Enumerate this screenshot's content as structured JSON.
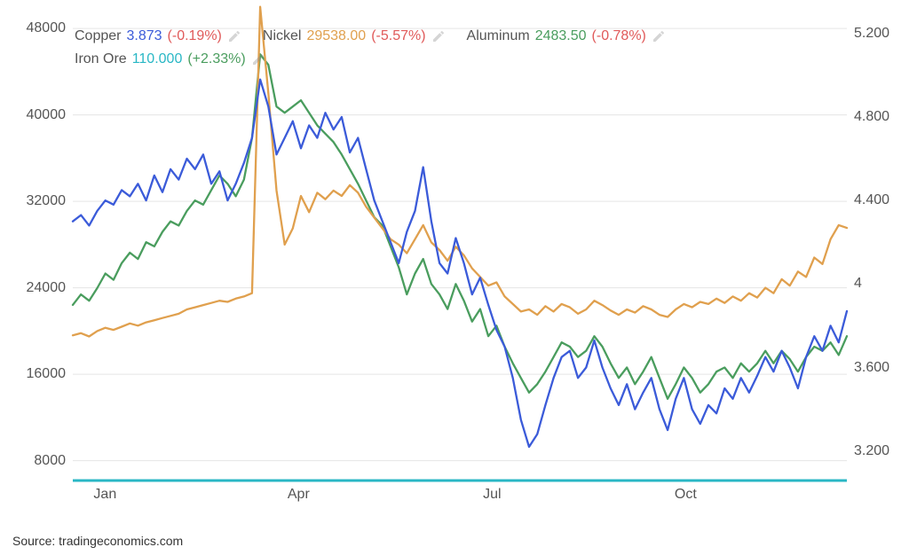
{
  "chart": {
    "type": "line",
    "background_color": "#ffffff",
    "grid_color": "#e5e5e5",
    "axis_text_color": "#555555",
    "axis_fontsize": 16,
    "line_width": 2.3,
    "baseline": {
      "color": "#29b7c5",
      "width": 3
    },
    "x_axis": {
      "ticks": [
        0,
        3,
        6,
        9
      ],
      "labels": [
        "Jan",
        "Apr",
        "Jul",
        "Oct"
      ],
      "xlim": [
        -0.5,
        11.5
      ]
    },
    "y_left": {
      "ticks": [
        8000,
        16000,
        24000,
        32000,
        40000,
        48000
      ],
      "labels": [
        "8000",
        "16000",
        "24000",
        "32000",
        "40000",
        "48000"
      ],
      "ylim": [
        6000,
        48500
      ]
    },
    "y_right": {
      "ticks": [
        3.2,
        3.6,
        4.0,
        4.4,
        4.8,
        5.2
      ],
      "labels": [
        "3.200",
        "3.600",
        "4",
        "4.400",
        "4.800",
        "5.200"
      ],
      "ylim": [
        3.05,
        5.25
      ]
    },
    "series": {
      "copper": {
        "name": "Copper",
        "color": "#3b5bd9",
        "axis": "right",
        "last_value": "3.873",
        "last_change": "(-0.19%)",
        "change_color": "#e05a5a",
        "data": [
          4.3,
          4.33,
          4.28,
          4.35,
          4.4,
          4.38,
          4.45,
          4.42,
          4.48,
          4.4,
          4.52,
          4.44,
          4.55,
          4.5,
          4.6,
          4.55,
          4.62,
          4.48,
          4.54,
          4.4,
          4.48,
          4.58,
          4.7,
          4.98,
          4.85,
          4.62,
          4.7,
          4.78,
          4.65,
          4.76,
          4.7,
          4.82,
          4.74,
          4.8,
          4.63,
          4.7,
          4.55,
          4.4,
          4.3,
          4.2,
          4.1,
          4.25,
          4.35,
          4.56,
          4.3,
          4.1,
          4.05,
          4.22,
          4.1,
          3.95,
          4.03,
          3.9,
          3.78,
          3.7,
          3.55,
          3.35,
          3.22,
          3.28,
          3.42,
          3.55,
          3.65,
          3.68,
          3.55,
          3.6,
          3.73,
          3.6,
          3.5,
          3.42,
          3.52,
          3.4,
          3.48,
          3.55,
          3.4,
          3.3,
          3.45,
          3.55,
          3.4,
          3.33,
          3.42,
          3.38,
          3.5,
          3.45,
          3.55,
          3.48,
          3.56,
          3.65,
          3.58,
          3.68,
          3.6,
          3.5,
          3.65,
          3.75,
          3.68,
          3.8,
          3.72,
          3.87
        ]
      },
      "nickel": {
        "name": "Nickel",
        "color": "#e0a04e",
        "axis": "left",
        "last_value": "29538.00",
        "last_change": "(-5.57%)",
        "change_color": "#e05a5a",
        "data": [
          19600,
          19800,
          19500,
          20000,
          20300,
          20100,
          20400,
          20700,
          20500,
          20800,
          21000,
          21200,
          21400,
          21600,
          22000,
          22200,
          22400,
          22600,
          22800,
          22700,
          23000,
          23200,
          23500,
          50000,
          42000,
          33000,
          28000,
          29500,
          32500,
          31000,
          32800,
          32200,
          33000,
          32500,
          33500,
          32800,
          31500,
          30500,
          29500,
          28500,
          28000,
          27200,
          28500,
          29800,
          28200,
          27500,
          26500,
          27800,
          27000,
          25800,
          25000,
          24200,
          24500,
          23200,
          22500,
          21800,
          22000,
          21500,
          22300,
          21800,
          22500,
          22200,
          21600,
          22000,
          22800,
          22400,
          21900,
          21500,
          22000,
          21700,
          22300,
          22000,
          21500,
          21300,
          22000,
          22500,
          22200,
          22700,
          22500,
          23000,
          22600,
          23200,
          22800,
          23500,
          23100,
          24000,
          23500,
          24800,
          24200,
          25500,
          25000,
          26800,
          26200,
          28500,
          29800,
          29538
        ]
      },
      "aluminum": {
        "name": "Aluminum",
        "color": "#4a9d5e",
        "axis": "right",
        "last_value": "2483.50",
        "last_change": "(-0.78%)",
        "change_color": "#e05a5a",
        "data": [
          3.9,
          3.95,
          3.92,
          3.98,
          4.05,
          4.02,
          4.1,
          4.15,
          4.12,
          4.2,
          4.18,
          4.25,
          4.3,
          4.28,
          4.35,
          4.4,
          4.38,
          4.45,
          4.52,
          4.48,
          4.42,
          4.5,
          4.7,
          5.1,
          5.05,
          4.85,
          4.82,
          4.85,
          4.88,
          4.82,
          4.76,
          4.72,
          4.68,
          4.62,
          4.55,
          4.48,
          4.4,
          4.32,
          4.28,
          4.18,
          4.08,
          3.95,
          4.05,
          4.12,
          4.0,
          3.95,
          3.88,
          4.0,
          3.92,
          3.82,
          3.88,
          3.75,
          3.8,
          3.7,
          3.62,
          3.55,
          3.48,
          3.52,
          3.58,
          3.65,
          3.72,
          3.7,
          3.65,
          3.68,
          3.75,
          3.7,
          3.62,
          3.55,
          3.6,
          3.52,
          3.58,
          3.65,
          3.55,
          3.45,
          3.52,
          3.6,
          3.55,
          3.48,
          3.52,
          3.58,
          3.6,
          3.55,
          3.62,
          3.58,
          3.62,
          3.68,
          3.62,
          3.68,
          3.64,
          3.58,
          3.65,
          3.7,
          3.68,
          3.72,
          3.66,
          3.75
        ]
      },
      "iron_ore": {
        "name": "Iron Ore",
        "color": "#29b7c5",
        "axis": "right",
        "last_value": "110.000",
        "last_change": "(+2.33%)",
        "change_color": "#4a9d5e",
        "data": []
      }
    }
  },
  "legend": {
    "row1": [
      "copper",
      "nickel",
      "aluminum"
    ],
    "row2": [
      "iron_ore"
    ]
  },
  "source": "Source: tradingeconomics.com"
}
